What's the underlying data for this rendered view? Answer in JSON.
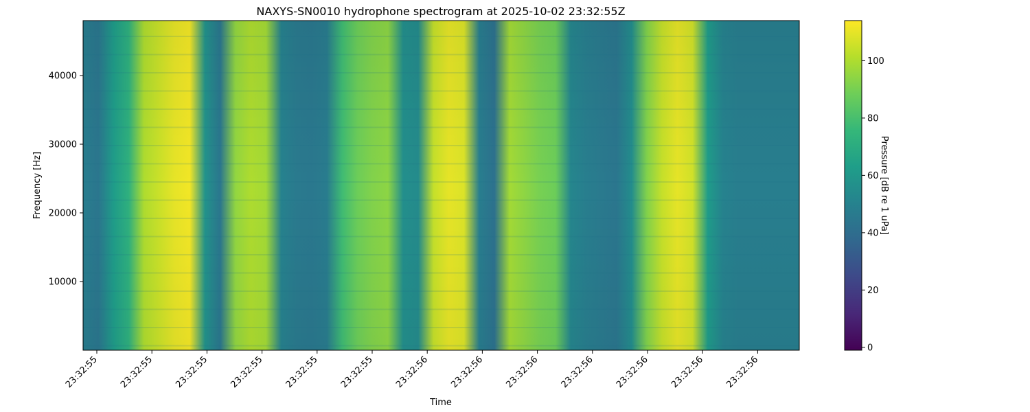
{
  "chart_data": {
    "type": "heatmap",
    "title": "NAXYS-SN0010 hydrophone spectrogram at 2025-10-02 23:32:55Z",
    "xlabel": "Time",
    "ylabel": "Frequency [Hz]",
    "x_tick_labels": [
      "23:32:55",
      "23:32:55",
      "23:32:55",
      "23:32:55",
      "23:32:55",
      "23:32:55",
      "23:32:56",
      "23:32:56",
      "23:32:56",
      "23:32:56",
      "23:32:56",
      "23:32:56",
      "23:32:56"
    ],
    "y_ticks": [
      10000,
      20000,
      30000,
      40000
    ],
    "y_tick_labels": [
      "10000",
      "20000",
      "30000",
      "40000"
    ],
    "ylim": [
      0,
      48000
    ],
    "colorbar": {
      "label": "Pressure [dB re 1 uPa]",
      "ticks": [
        0,
        20,
        40,
        60,
        80,
        100
      ],
      "tick_labels": [
        "0",
        "20",
        "40",
        "60",
        "80",
        "100"
      ],
      "range": [
        -1,
        114
      ],
      "colormap": "viridis"
    },
    "time_columns_db": [
      48,
      44,
      62,
      72,
      100,
      105,
      110,
      112,
      58,
      44,
      95,
      100,
      98,
      50,
      46,
      45,
      47,
      78,
      88,
      92,
      94,
      56,
      54,
      104,
      110,
      108,
      48,
      42,
      98,
      94,
      90,
      88,
      52,
      48,
      46,
      44,
      55,
      92,
      104,
      110,
      106,
      62,
      50,
      48,
      48,
      48,
      48,
      48
    ],
    "grid": false,
    "legend": "none"
  }
}
